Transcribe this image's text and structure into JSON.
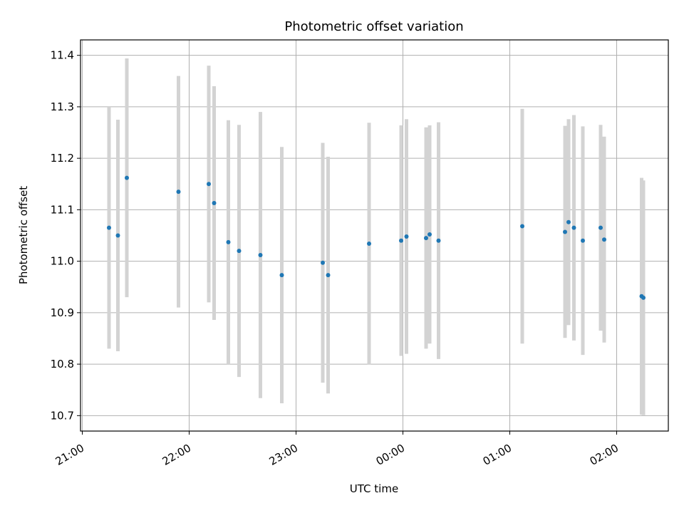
{
  "chart_data": {
    "type": "scatter",
    "title": "Photometric offset variation",
    "xlabel": "UTC time",
    "ylabel": "Photometric offset",
    "x_ticks": [
      "21:00",
      "22:00",
      "23:00",
      "00:00",
      "01:00",
      "02:00"
    ],
    "y_ticks": [
      "10.7",
      "10.8",
      "10.9",
      "11.0",
      "11.1",
      "11.2",
      "11.3",
      "11.4"
    ],
    "xlim": [
      "20:59",
      "02:29"
    ],
    "ylim": [
      10.67,
      11.43
    ],
    "grid": true,
    "colors": {
      "points": "#1f77b4",
      "errorbars": "#d3d3d3",
      "grid": "#b0b0b0"
    },
    "points": [
      {
        "time": "21:15",
        "y": 11.065,
        "err": 0.235
      },
      {
        "time": "21:20",
        "y": 11.05,
        "err": 0.225
      },
      {
        "time": "21:25",
        "y": 11.162,
        "err": 0.232
      },
      {
        "time": "21:54",
        "y": 11.135,
        "err": 0.225
      },
      {
        "time": "22:11",
        "y": 11.15,
        "err": 0.23
      },
      {
        "time": "22:14",
        "y": 11.113,
        "err": 0.227
      },
      {
        "time": "22:22",
        "y": 11.037,
        "err": 0.237
      },
      {
        "time": "22:28",
        "y": 11.02,
        "err": 0.245
      },
      {
        "time": "22:40",
        "y": 11.012,
        "err": 0.278
      },
      {
        "time": "22:52",
        "y": 10.973,
        "err": 0.249
      },
      {
        "time": "23:15",
        "y": 10.997,
        "err": 0.233
      },
      {
        "time": "23:18",
        "y": 10.973,
        "err": 0.23
      },
      {
        "time": "23:41",
        "y": 11.034,
        "err": 0.235
      },
      {
        "time": "23:59",
        "y": 11.04,
        "err": 0.224
      },
      {
        "time": "00:02",
        "y": 11.048,
        "err": 0.228
      },
      {
        "time": "00:13",
        "y": 11.045,
        "err": 0.215
      },
      {
        "time": "00:15",
        "y": 11.052,
        "err": 0.212
      },
      {
        "time": "00:20",
        "y": 11.04,
        "err": 0.23
      },
      {
        "time": "01:07",
        "y": 11.068,
        "err": 0.228
      },
      {
        "time": "01:31",
        "y": 11.057,
        "err": 0.206
      },
      {
        "time": "01:33",
        "y": 11.076,
        "err": 0.2
      },
      {
        "time": "01:36",
        "y": 11.065,
        "err": 0.219
      },
      {
        "time": "01:41",
        "y": 11.04,
        "err": 0.222
      },
      {
        "time": "01:51",
        "y": 11.065,
        "err": 0.2
      },
      {
        "time": "01:53",
        "y": 11.042,
        "err": 0.2
      },
      {
        "time": "02:14",
        "y": 10.932,
        "err": 0.23
      },
      {
        "time": "02:15",
        "y": 10.929,
        "err": 0.228
      }
    ]
  }
}
